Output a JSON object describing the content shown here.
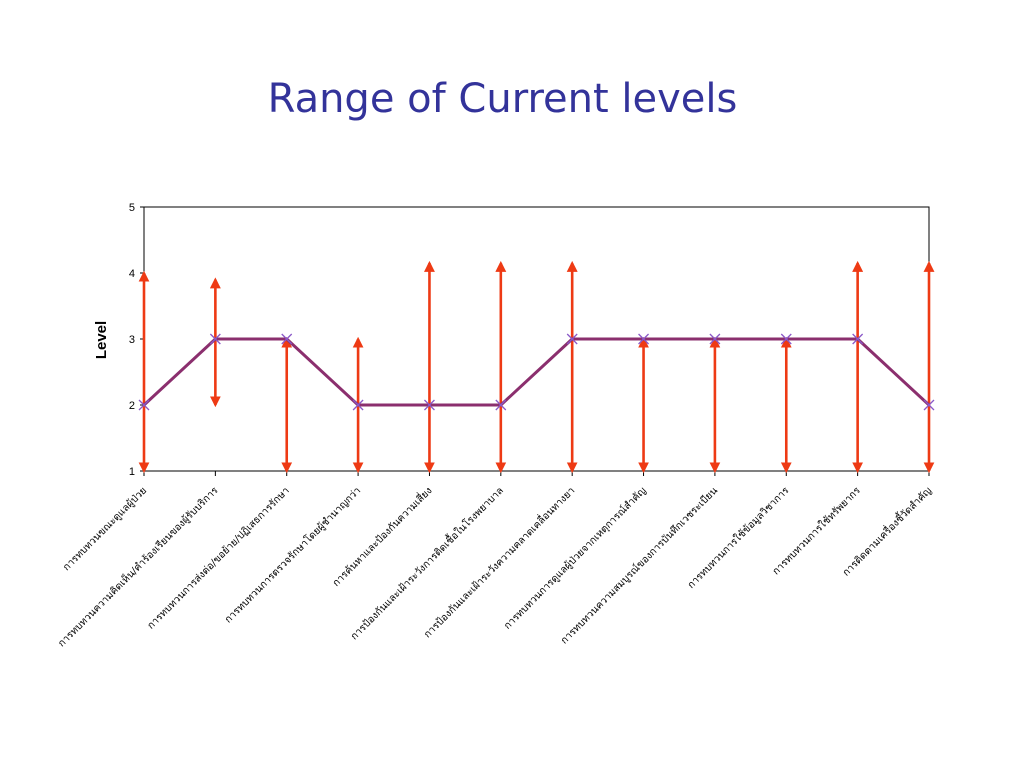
{
  "slide": {
    "title": "Range of Current levels"
  },
  "colors": {
    "title": "#33339a",
    "line": "#8b2f6e",
    "range": "#ee3a14",
    "marker": "#8a58c8"
  },
  "chart_data": {
    "type": "line",
    "title": "Range of Current levels",
    "xlabel": "",
    "ylabel": "Level",
    "ylim": [
      1,
      5
    ],
    "yticks": [
      1,
      2,
      3,
      4,
      5
    ],
    "grid": false,
    "categories": [
      "การทบทวนขณะดูแลผู้ป่วย",
      "การทบทวนความคิดเห็น/คำร้องเรียนของผู้รับบริการ",
      "การทบทวนการส่งต่อ/ขอย้าย/ปฏิเสธการรักษา",
      "การทบทวนการตรวจรักษาโดยผู้ชำนาญกว่า",
      "การค้นหาและป้องกันความเสี่ยง",
      "การป้องกันและเฝ้าระวังการติดเชื้อในโรงพยาบาล",
      "การป้องกันและเฝ้าระวังความคลาดเคลื่อนทางยา",
      "การทบทวนการดูแลผู้ป่วยจากเหตุการณ์สำคัญ",
      "การทบทวนความสมบูรณ์ของการบันทึกเวชระเบียน",
      "การทบทวนการใช้ข้อมูลวิชาการ",
      "การทบทวนการใช้ทรัพยากร",
      "การติดตามเครื่องชี้วัดสำคัญ"
    ],
    "series": [
      {
        "values": [
          2,
          3,
          3,
          2,
          2,
          2,
          3,
          3,
          3,
          3,
          3,
          2
        ]
      }
    ],
    "ranges": [
      [
        1,
        4
      ],
      [
        2,
        3.9
      ],
      [
        1,
        3
      ],
      [
        1,
        3
      ],
      [
        1,
        4.15
      ],
      [
        1,
        4.15
      ],
      [
        1,
        4.15
      ],
      [
        1,
        3
      ],
      [
        1,
        3
      ],
      [
        1,
        3
      ],
      [
        1,
        4.15
      ],
      [
        1,
        4.15
      ]
    ]
  }
}
